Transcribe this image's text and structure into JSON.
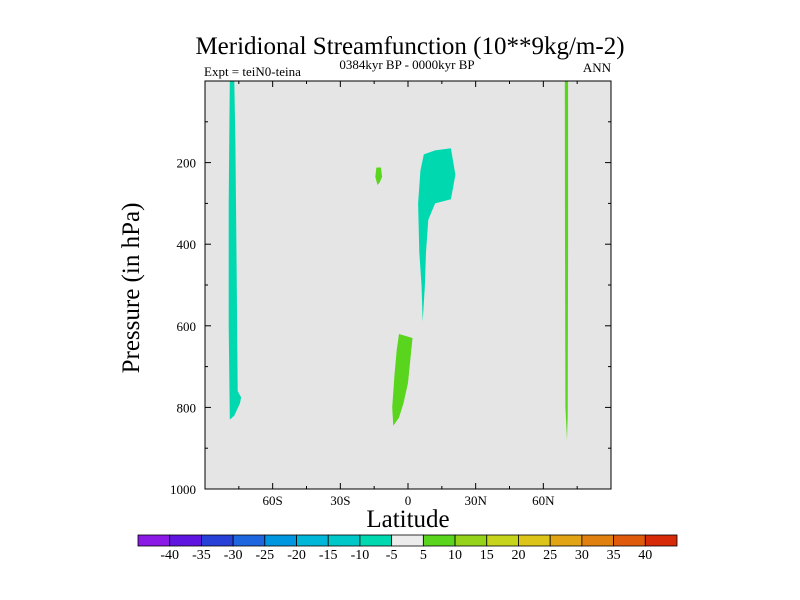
{
  "chart_data": {
    "type": "contour",
    "title": "Meridional Streamfunction (10**9kg/m-2)",
    "subtitle_center": "0384kyr BP - 0000kyr BP",
    "subtitle_left": "Expt = teiN0-teina",
    "subtitle_right": "ANN",
    "xlabel": "Latitude",
    "ylabel": "Pressure (in hPa)",
    "xlim": [
      -90,
      90
    ],
    "ylim": [
      1000,
      0
    ],
    "x_ticks": [
      {
        "value": -60,
        "label": "60S"
      },
      {
        "value": -30,
        "label": "30S"
      },
      {
        "value": 0,
        "label": "0"
      },
      {
        "value": 30,
        "label": "30N"
      },
      {
        "value": 60,
        "label": "60N"
      }
    ],
    "y_ticks": [
      {
        "value": 200,
        "label": "200"
      },
      {
        "value": 400,
        "label": "400"
      },
      {
        "value": 600,
        "label": "600"
      },
      {
        "value": 800,
        "label": "800"
      },
      {
        "value": 1000,
        "label": "1000"
      }
    ],
    "background_color": "#e5e5e5",
    "regions": [
      {
        "name": "southern-high-lat-negative",
        "level": "-10 to -5",
        "color": "#00d9b0",
        "points": [
          [
            -79,
            0
          ],
          [
            -77,
            0
          ],
          [
            -76.5,
            150
          ],
          [
            -76,
            450
          ],
          [
            -75.5,
            760
          ],
          [
            -74,
            775
          ],
          [
            -74.5,
            790
          ],
          [
            -77,
            820
          ],
          [
            -79,
            830
          ],
          [
            -79.5,
            600
          ],
          [
            -79.5,
            300
          ],
          [
            -79.2,
            100
          ]
        ]
      },
      {
        "name": "tropical-upper-negative",
        "level": "-10 to -5",
        "color": "#00d9b0",
        "points": [
          [
            7,
            180
          ],
          [
            12,
            170
          ],
          [
            19,
            165
          ],
          [
            21,
            230
          ],
          [
            19,
            290
          ],
          [
            12,
            300
          ],
          [
            9,
            340
          ],
          [
            8,
            420
          ],
          [
            7.5,
            500
          ],
          [
            6.5,
            590
          ],
          [
            6,
            500
          ],
          [
            5,
            420
          ],
          [
            4.5,
            300
          ],
          [
            5.5,
            220
          ]
        ]
      },
      {
        "name": "tropical-small-positive",
        "level": "5 to 10",
        "color": "#59d51d",
        "points": [
          [
            -14,
            212
          ],
          [
            -12,
            212
          ],
          [
            -11.5,
            235
          ],
          [
            -12.5,
            248
          ],
          [
            -13.5,
            255
          ],
          [
            -14.5,
            235
          ]
        ]
      },
      {
        "name": "tropical-lower-positive",
        "level": "5 to 10",
        "color": "#59d51d",
        "points": [
          [
            -4,
            620
          ],
          [
            2,
            630
          ],
          [
            0,
            740
          ],
          [
            -2,
            790
          ],
          [
            -4,
            825
          ],
          [
            -6.5,
            845
          ],
          [
            -7,
            800
          ],
          [
            -6,
            720
          ],
          [
            -5,
            660
          ]
        ]
      },
      {
        "name": "northern-high-lat-positive",
        "level": "5 to 10",
        "color": "#59d51d",
        "points": [
          [
            69.5,
            0
          ],
          [
            71,
            0
          ],
          [
            71,
            400
          ],
          [
            70.8,
            820
          ],
          [
            70.5,
            880
          ],
          [
            69.8,
            800
          ],
          [
            69.6,
            400
          ]
        ]
      }
    ],
    "colorbar": {
      "labels": [
        "-40",
        "-35",
        "-30",
        "-25",
        "-20",
        "-15",
        "-10",
        "-5",
        "5",
        "10",
        "15",
        "20",
        "25",
        "30",
        "35",
        "40"
      ],
      "colors": [
        "#8c1ae6",
        "#6014e0",
        "#2740d8",
        "#1e66e0",
        "#0097e0",
        "#00b6d9",
        "#00c8c8",
        "#00d9b0",
        "#ececec",
        "#59d51d",
        "#95d21a",
        "#c6d41b",
        "#dcc418",
        "#e0a415",
        "#e0800f",
        "#e05a0c",
        "#d62a08"
      ]
    }
  }
}
